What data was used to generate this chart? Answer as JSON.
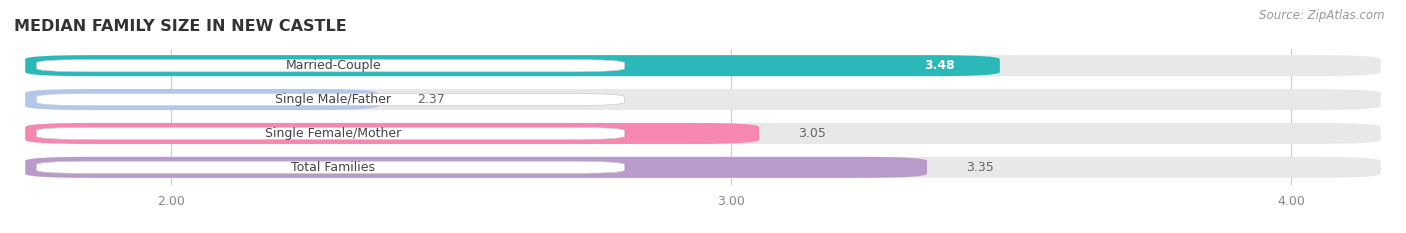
{
  "title": "MEDIAN FAMILY SIZE IN NEW CASTLE",
  "source": "Source: ZipAtlas.com",
  "categories": [
    "Married-Couple",
    "Single Male/Father",
    "Single Female/Mother",
    "Total Families"
  ],
  "values": [
    3.48,
    2.37,
    3.05,
    3.35
  ],
  "bar_colors": [
    "#2ab8b8",
    "#b3c7ea",
    "#f587b0",
    "#b89bca"
  ],
  "xlim_min": 1.72,
  "xlim_max": 4.18,
  "xticks": [
    2.0,
    3.0,
    4.0
  ],
  "xtick_labels": [
    "2.00",
    "3.00",
    "4.00"
  ],
  "bar_height": 0.62,
  "background_color": "#ffffff",
  "bar_bg_color": "#e8e8e8",
  "title_fontsize": 11.5,
  "label_fontsize": 9,
  "value_fontsize": 9,
  "source_fontsize": 8.5,
  "value_inside_threshold": 3.4
}
